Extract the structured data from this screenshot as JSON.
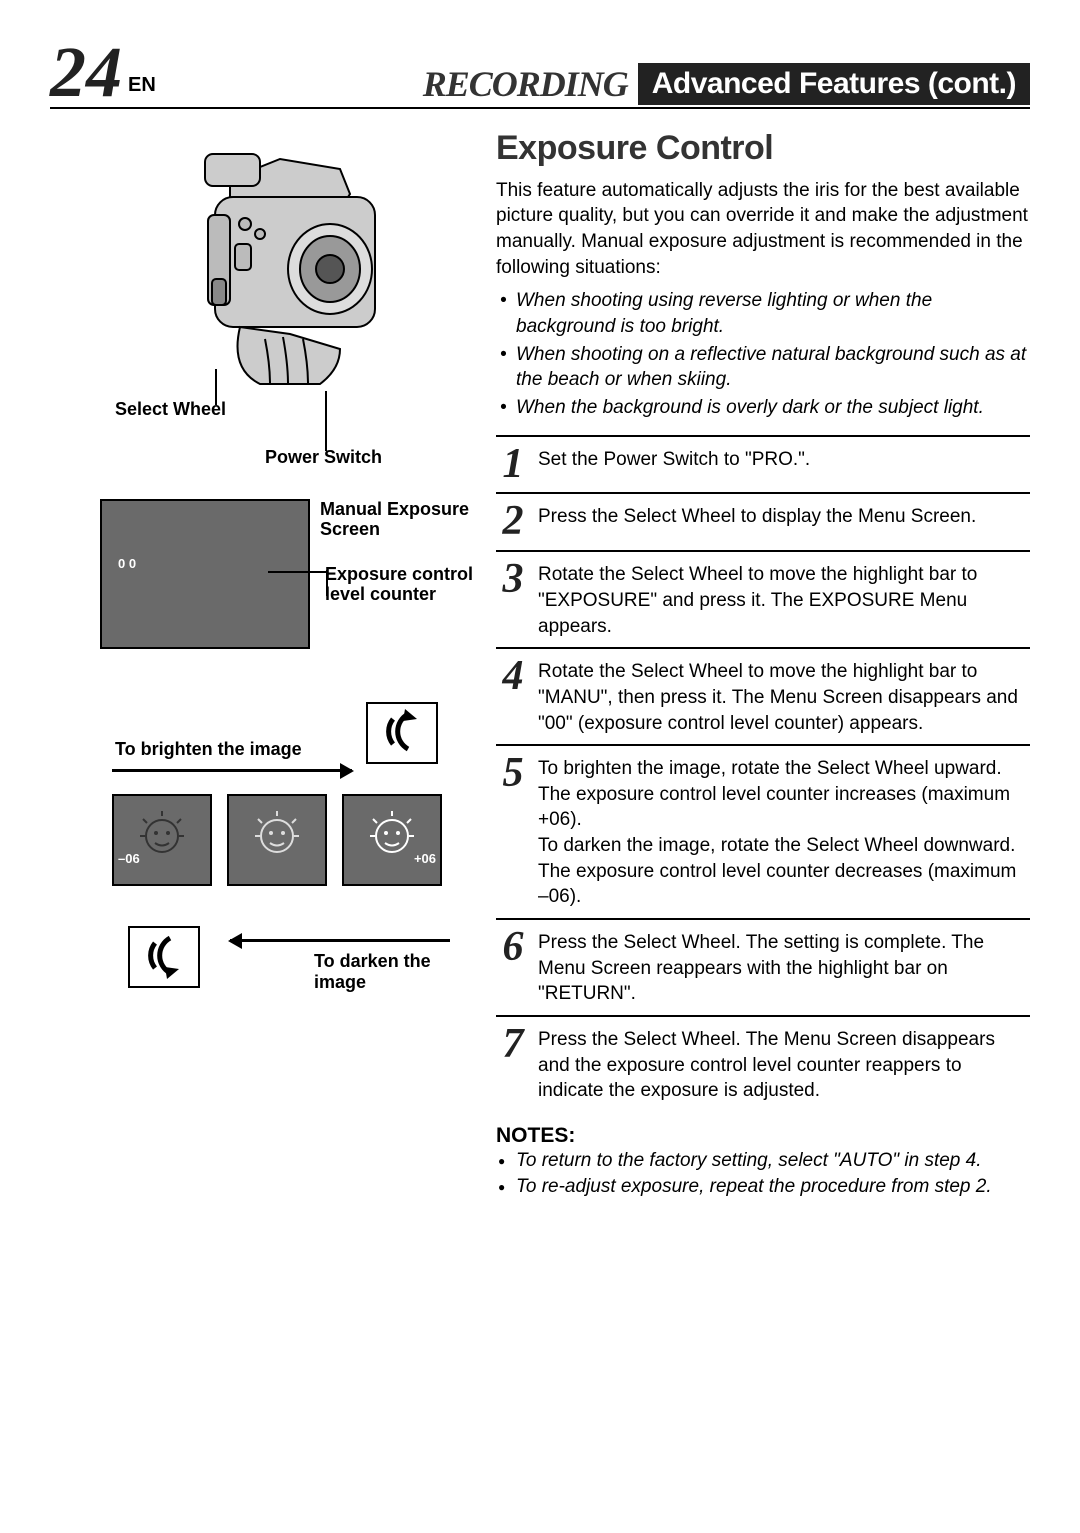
{
  "pageNumber": "24",
  "langCode": "EN",
  "headerSection": "RECORDING",
  "headerBox": "Advanced Features (cont.)",
  "sectionTitle": "Exposure Control",
  "introText": "This feature automatically adjusts the iris for the best available picture quality, but you can override it and make the adjustment manually. Manual exposure adjustment is recommended in the following situations:",
  "situations": [
    "When shooting using reverse lighting or when the background is too bright.",
    "When shooting on a reflective natural background such as at the beach or when skiing.",
    "When the background is overly dark or the subject light."
  ],
  "steps": [
    {
      "n": "1",
      "text": "Set the Power Switch to \"PRO.\"."
    },
    {
      "n": "2",
      "text": "Press the Select Wheel to display the Menu Screen."
    },
    {
      "n": "3",
      "text": "Rotate the Select Wheel to move the highlight bar to \"EXPOSURE\" and press it. The EXPOSURE Menu appears."
    },
    {
      "n": "4",
      "text": "Rotate the Select Wheel to move the highlight bar to \"MANU\", then press it. The Menu Screen disappears and \"00\" (exposure control level counter) appears."
    },
    {
      "n": "5",
      "text": "To brighten the image, rotate the Select Wheel upward. The exposure control level counter increases (maximum +06).\nTo darken the image, rotate the Select Wheel downward. The exposure control level counter decreases (maximum –06)."
    },
    {
      "n": "6",
      "text": "Press the Select Wheel. The setting is complete. The Menu Screen reappears with the highlight bar on \"RETURN\"."
    },
    {
      "n": "7",
      "text": "Press the Select Wheel. The Menu Screen disappears and the exposure control level counter reappers to indicate the exposure is adjusted."
    }
  ],
  "notesHeading": "NOTES:",
  "notes": [
    "To return to the factory setting, select \"AUTO\" in step 4.",
    "To re-adjust exposure, repeat the procedure from step 2."
  ],
  "labels": {
    "selectWheel": "Select Wheel",
    "powerSwitch": "Power Switch",
    "manualExposure": "Manual Exposure Screen",
    "levelCounter": "Exposure control level counter",
    "brighten": "To brighten the image",
    "darken": "To darken the image",
    "counter00": "0 0",
    "minus06": "–06",
    "plus06": "+06"
  },
  "colors": {
    "screenGray": "#6a6a6a",
    "text": "#000000",
    "background": "#ffffff"
  }
}
